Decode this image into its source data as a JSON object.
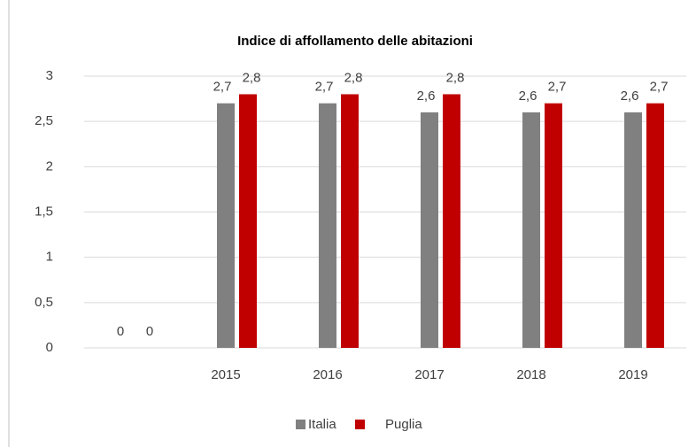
{
  "chart_data": {
    "type": "bar",
    "title": "Indice di affollamento delle abitazioni",
    "categories": [
      null,
      "2015",
      "2016",
      "2017",
      "2018",
      "2019"
    ],
    "series": [
      {
        "name": "Italia",
        "color": "#808080",
        "values": [
          0,
          2.7,
          2.7,
          2.6,
          2.6,
          2.6
        ],
        "value_labels": [
          "0",
          "2,7",
          "2,7",
          "2,6",
          "2,6",
          "2,6"
        ]
      },
      {
        "name": "Puglia",
        "color": "#c00000",
        "values": [
          0,
          2.8,
          2.8,
          2.8,
          2.7,
          2.7
        ],
        "value_labels": [
          "0",
          "2,8",
          "2,8",
          "2,8",
          "2,7",
          "2,7"
        ]
      }
    ],
    "ylim": [
      0,
      3
    ],
    "yticks": [
      0,
      {
        "value": 0.5,
        "label": "0,5"
      },
      1,
      {
        "value": 1.5,
        "label": "1,5"
      },
      2,
      {
        "value": 2.5,
        "label": "2,5"
      },
      3
    ],
    "grid": true,
    "legend": "bottom"
  }
}
